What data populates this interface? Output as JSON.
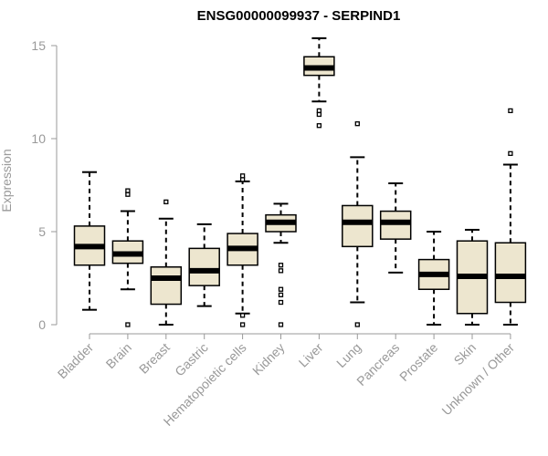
{
  "chart_data": {
    "type": "boxplot",
    "title": "ENSG00000099937 - SERPIND1",
    "xlabel": "",
    "ylabel": "Expression",
    "ylim": [
      0,
      15.5
    ],
    "yticks": [
      0,
      5,
      10,
      15
    ],
    "categories": [
      "Bladder",
      "Brain",
      "Breast",
      "Gastric",
      "Hematopoietic cells",
      "Kidney",
      "Liver",
      "Lung",
      "Pancreas",
      "Prostate",
      "Skin",
      "Unknown / Other"
    ],
    "boxes": [
      {
        "name": "Bladder",
        "whisker_low": 0.8,
        "q1": 3.2,
        "median": 4.2,
        "q3": 5.3,
        "whisker_high": 8.2,
        "outliers": []
      },
      {
        "name": "Brain",
        "whisker_low": 1.9,
        "q1": 3.3,
        "median": 3.8,
        "q3": 4.5,
        "whisker_high": 6.1,
        "outliers": [
          7.0,
          7.2,
          0.0
        ]
      },
      {
        "name": "Breast",
        "whisker_low": 0.0,
        "q1": 1.1,
        "median": 2.5,
        "q3": 3.1,
        "whisker_high": 5.7,
        "outliers": [
          6.6
        ]
      },
      {
        "name": "Gastric",
        "whisker_low": 1.0,
        "q1": 2.1,
        "median": 2.9,
        "q3": 4.1,
        "whisker_high": 5.4,
        "outliers": []
      },
      {
        "name": "Hematopoietic cells",
        "whisker_low": 0.6,
        "q1": 3.2,
        "median": 4.1,
        "q3": 4.9,
        "whisker_high": 7.7,
        "outliers": [
          7.8,
          8.0,
          0.5,
          0.0
        ]
      },
      {
        "name": "Kidney",
        "whisker_low": 4.4,
        "q1": 5.0,
        "median": 5.5,
        "q3": 5.9,
        "whisker_high": 6.5,
        "outliers": [
          3.2,
          2.9,
          1.9,
          1.6,
          1.2,
          0.0
        ]
      },
      {
        "name": "Liver",
        "whisker_low": 12.0,
        "q1": 13.4,
        "median": 13.8,
        "q3": 14.4,
        "whisker_high": 15.4,
        "outliers": [
          11.5,
          11.3,
          10.7
        ]
      },
      {
        "name": "Lung",
        "whisker_low": 1.2,
        "q1": 4.2,
        "median": 5.5,
        "q3": 6.4,
        "whisker_high": 9.0,
        "outliers": [
          10.8,
          0.0
        ]
      },
      {
        "name": "Pancreas",
        "whisker_low": 2.8,
        "q1": 4.6,
        "median": 5.5,
        "q3": 6.1,
        "whisker_high": 7.6,
        "outliers": []
      },
      {
        "name": "Prostate",
        "whisker_low": 0.0,
        "q1": 1.9,
        "median": 2.7,
        "q3": 3.5,
        "whisker_high": 5.0,
        "outliers": []
      },
      {
        "name": "Skin",
        "whisker_low": 0.0,
        "q1": 0.6,
        "median": 2.6,
        "q3": 4.5,
        "whisker_high": 5.1,
        "outliers": []
      },
      {
        "name": "Unknown / Other",
        "whisker_low": 0.0,
        "q1": 1.2,
        "median": 2.6,
        "q3": 4.4,
        "whisker_high": 8.6,
        "outliers": [
          9.2,
          11.5
        ]
      }
    ],
    "colors": {
      "box_fill": "#ede6cf",
      "box_stroke": "#000000",
      "median": "#000000",
      "axis": "#999999",
      "title": "#000000"
    },
    "grid": false,
    "legend": "none"
  }
}
